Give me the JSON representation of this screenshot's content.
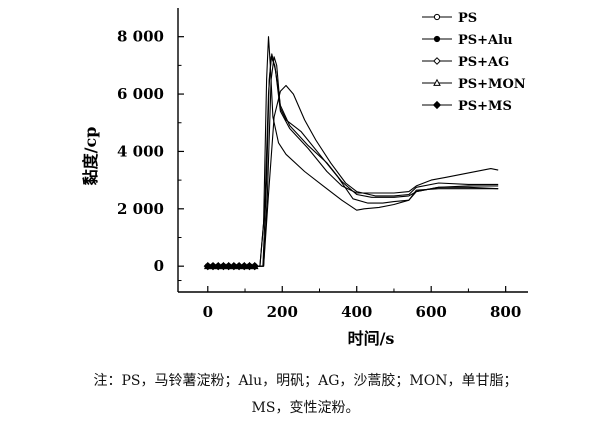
{
  "chart_data": {
    "type": "line",
    "title": "",
    "xlabel": "时间/s",
    "ylabel": "黏度/cp",
    "xlim": [
      -80,
      860
    ],
    "ylim": [
      -900,
      9000
    ],
    "x_ticks": [
      0,
      200,
      400,
      600,
      800
    ],
    "x_tick_labels": [
      "0",
      "200",
      "400",
      "600",
      "800"
    ],
    "y_ticks": [
      0,
      2000,
      4000,
      6000,
      8000
    ],
    "y_tick_labels": [
      "0",
      "2 000",
      "4 000",
      "6 000",
      "8 000"
    ],
    "legend_position": "top-right",
    "grid": false,
    "series": [
      {
        "name": "PS",
        "marker": "open-circle",
        "points": [
          [
            0,
            0
          ],
          [
            140,
            0
          ],
          [
            150,
            1500
          ],
          [
            158,
            6500
          ],
          [
            163,
            8000
          ],
          [
            168,
            7000
          ],
          [
            175,
            5200
          ],
          [
            190,
            4300
          ],
          [
            210,
            3900
          ],
          [
            260,
            3300
          ],
          [
            310,
            2800
          ],
          [
            360,
            2300
          ],
          [
            400,
            1950
          ],
          [
            420,
            2000
          ],
          [
            460,
            2050
          ],
          [
            500,
            2150
          ],
          [
            540,
            2300
          ],
          [
            560,
            2650
          ],
          [
            620,
            2700
          ],
          [
            700,
            2700
          ],
          [
            780,
            2700
          ]
        ]
      },
      {
        "name": "PS+Alu",
        "marker": "filled-circle",
        "points": [
          [
            0,
            0
          ],
          [
            140,
            0
          ],
          [
            153,
            2000
          ],
          [
            163,
            6000
          ],
          [
            170,
            7300
          ],
          [
            180,
            7000
          ],
          [
            195,
            5600
          ],
          [
            220,
            4900
          ],
          [
            270,
            4200
          ],
          [
            320,
            3600
          ],
          [
            360,
            2950
          ],
          [
            400,
            2500
          ],
          [
            440,
            2400
          ],
          [
            500,
            2400
          ],
          [
            540,
            2450
          ],
          [
            560,
            2600
          ],
          [
            620,
            2750
          ],
          [
            700,
            2750
          ],
          [
            780,
            2700
          ]
        ]
      },
      {
        "name": "PS+AG",
        "marker": "diamond",
        "points": [
          [
            0,
            0
          ],
          [
            150,
            0
          ],
          [
            163,
            2500
          ],
          [
            178,
            5200
          ],
          [
            195,
            6100
          ],
          [
            210,
            6300
          ],
          [
            230,
            6000
          ],
          [
            260,
            5100
          ],
          [
            290,
            4400
          ],
          [
            330,
            3600
          ],
          [
            370,
            2900
          ],
          [
            400,
            2600
          ],
          [
            450,
            2450
          ],
          [
            500,
            2450
          ],
          [
            540,
            2500
          ],
          [
            560,
            2750
          ],
          [
            620,
            2900
          ],
          [
            700,
            2850
          ],
          [
            780,
            2850
          ]
        ]
      },
      {
        "name": "PS+MON",
        "marker": "open-triangle",
        "points": [
          [
            0,
            0
          ],
          [
            150,
            0
          ],
          [
            160,
            2500
          ],
          [
            170,
            6500
          ],
          [
            178,
            7300
          ],
          [
            185,
            7000
          ],
          [
            195,
            5500
          ],
          [
            210,
            5100
          ],
          [
            250,
            4700
          ],
          [
            300,
            3900
          ],
          [
            350,
            3100
          ],
          [
            390,
            2350
          ],
          [
            430,
            2200
          ],
          [
            470,
            2200
          ],
          [
            500,
            2250
          ],
          [
            540,
            2300
          ],
          [
            560,
            2600
          ],
          [
            620,
            2750
          ],
          [
            700,
            2800
          ],
          [
            780,
            2800
          ]
        ]
      },
      {
        "name": "PS+MS",
        "marker": "filled-diamond",
        "points": [
          [
            0,
            0
          ],
          [
            148,
            0
          ],
          [
            158,
            3000
          ],
          [
            165,
            6500
          ],
          [
            172,
            7400
          ],
          [
            182,
            6800
          ],
          [
            195,
            5400
          ],
          [
            220,
            4800
          ],
          [
            270,
            4100
          ],
          [
            320,
            3300
          ],
          [
            360,
            2800
          ],
          [
            400,
            2550
          ],
          [
            440,
            2550
          ],
          [
            500,
            2550
          ],
          [
            540,
            2600
          ],
          [
            560,
            2800
          ],
          [
            600,
            3000
          ],
          [
            640,
            3100
          ],
          [
            700,
            3250
          ],
          [
            760,
            3400
          ],
          [
            780,
            3350
          ]
        ]
      }
    ]
  },
  "caption": {
    "line1": "注：PS，马铃薯淀粉；Alu，明矾；AG，沙蒿胶；MON，单甘脂；",
    "line2": "MS，变性淀粉。"
  }
}
